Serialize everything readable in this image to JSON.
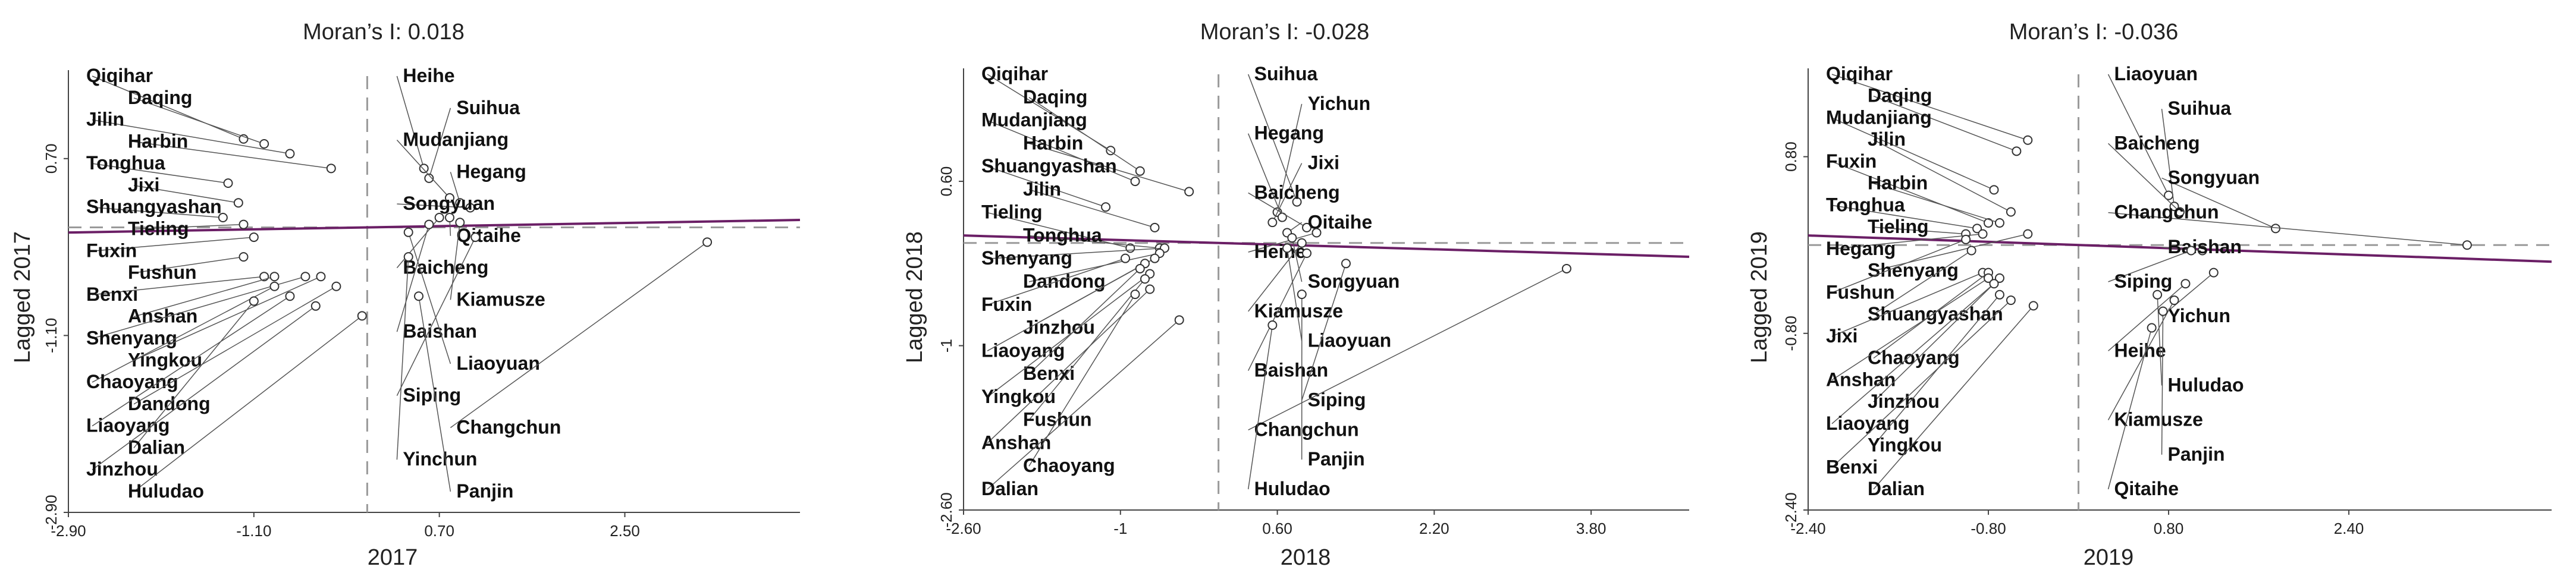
{
  "figure": {
    "panels": [
      {
        "title": "Moran’s I: 0.018",
        "xlabel": "2017",
        "ylabel": "Lagged 2017"
      },
      {
        "title": "Moran’s I: -0.028",
        "xlabel": "2018",
        "ylabel": "Lagged 2018"
      },
      {
        "title": "Moran’s I: -0.036",
        "xlabel": "2019",
        "ylabel": "Lagged 2019"
      }
    ]
  },
  "colors": {
    "regression_line": "#6b1f66",
    "reference_line": "#9a9a9a",
    "points": "#333333"
  },
  "chart_data": [
    {
      "type": "scatter",
      "title": "Moran’s I: 0.018",
      "xlabel": "2017",
      "ylabel": "Lagged 2017",
      "xlim": [
        -2.9,
        4.2
      ],
      "ylim": [
        -2.9,
        1.6
      ],
      "xticks": [
        -2.9,
        -1.1,
        0.7,
        2.5
      ],
      "xtick_labels": [
        "-2.90",
        "-1.10",
        "0.70",
        "2.50"
      ],
      "yticks": [
        -2.9,
        -1.1,
        0.7
      ],
      "ytick_labels": [
        "-2.90",
        "-1.10",
        "0.70"
      ],
      "reference_lines": {
        "vertical_x": 0,
        "horizontal_y": 0
      },
      "regression_slope": 0.018,
      "points": [
        {
          "name": "Daqing",
          "x": -1.0,
          "y": 0.85
        },
        {
          "name": "Qiqihar",
          "x": -1.2,
          "y": 0.9
        },
        {
          "name": "Jilin",
          "x": -0.75,
          "y": 0.75
        },
        {
          "name": "Harbin",
          "x": -0.35,
          "y": 0.6
        },
        {
          "name": "Tonghua",
          "x": -1.35,
          "y": 0.45
        },
        {
          "name": "Jixi",
          "x": -1.25,
          "y": 0.25
        },
        {
          "name": "Shuangyashan",
          "x": -1.4,
          "y": 0.1
        },
        {
          "name": "Tieling",
          "x": -1.2,
          "y": 0.03
        },
        {
          "name": "Fuxin",
          "x": -1.1,
          "y": -0.1
        },
        {
          "name": "Fushun",
          "x": -1.2,
          "y": -0.3
        },
        {
          "name": "Benxi",
          "x": -1.0,
          "y": -0.5
        },
        {
          "name": "Anshan",
          "x": -0.9,
          "y": -0.5
        },
        {
          "name": "Shenyang",
          "x": -0.6,
          "y": -0.5
        },
        {
          "name": "Yingkou",
          "x": -0.45,
          "y": -0.5
        },
        {
          "name": "Dalian",
          "x": -1.1,
          "y": -0.75
        },
        {
          "name": "Chaoyang",
          "x": -0.9,
          "y": -0.6
        },
        {
          "name": "Liaoyang",
          "x": -0.75,
          "y": -0.7
        },
        {
          "name": "Jinzhou",
          "x": -0.5,
          "y": -0.8
        },
        {
          "name": "Dandong",
          "x": -0.3,
          "y": -0.6
        },
        {
          "name": "Huludao",
          "x": -0.05,
          "y": -0.9
        },
        {
          "name": "Heihe",
          "x": 0.55,
          "y": 0.6
        },
        {
          "name": "Suihua",
          "x": 0.6,
          "y": 0.5
        },
        {
          "name": "Mudanjiang",
          "x": 0.8,
          "y": 0.3
        },
        {
          "name": "Hegang",
          "x": 0.9,
          "y": 0.25
        },
        {
          "name": "Songyuan",
          "x": 1.0,
          "y": 0.2
        },
        {
          "name": "Qitaihe",
          "x": 0.8,
          "y": 0.1
        },
        {
          "name": "Baicheng",
          "x": 0.7,
          "y": 0.1
        },
        {
          "name": "Kiamusze",
          "x": 0.9,
          "y": 0.05
        },
        {
          "name": "Baishan",
          "x": 0.6,
          "y": 0.03
        },
        {
          "name": "Siping",
          "x": 1.05,
          "y": -0.1
        },
        {
          "name": "Liaoyuan",
          "x": 0.4,
          "y": -0.05
        },
        {
          "name": "Panjin",
          "x": 0.5,
          "y": -0.7
        },
        {
          "name": "Yinchun",
          "x": 0.4,
          "y": -0.3
        },
        {
          "name": "Changchun",
          "x": 3.3,
          "y": -0.15
        }
      ]
    },
    {
      "type": "scatter",
      "title": "Moran’s I: -0.028",
      "xlabel": "2018",
      "ylabel": "Lagged 2018",
      "xlim": [
        -2.6,
        4.8
      ],
      "ylim": [
        -2.6,
        1.7
      ],
      "xticks": [
        -2.6,
        -1,
        0.6,
        2.2,
        3.8
      ],
      "xtick_labels": [
        "-2.60",
        "-1",
        "0.60",
        "2.20",
        "3.80"
      ],
      "yticks": [
        -2.6,
        -1,
        0.6
      ],
      "ytick_labels": [
        "-2.60",
        "-1",
        "0.60"
      ],
      "reference_lines": {
        "vertical_x": 0,
        "horizontal_y": 0
      },
      "regression_slope": -0.028,
      "points": [
        {
          "name": "Qiqihar",
          "x": -1.1,
          "y": 0.9
        },
        {
          "name": "Daqing",
          "x": -0.8,
          "y": 0.7
        },
        {
          "name": "Mudanjiang",
          "x": -0.85,
          "y": 0.6
        },
        {
          "name": "Harbin",
          "x": -0.3,
          "y": 0.5
        },
        {
          "name": "Shuangyashan",
          "x": -1.15,
          "y": 0.35
        },
        {
          "name": "Jilin",
          "x": -0.65,
          "y": 0.15
        },
        {
          "name": "Tieling",
          "x": -0.9,
          "y": -0.05
        },
        {
          "name": "Fuxin",
          "x": -0.95,
          "y": -0.15
        },
        {
          "name": "Benxi",
          "x": -0.8,
          "y": -0.25
        },
        {
          "name": "Fushun",
          "x": -0.75,
          "y": -0.35
        },
        {
          "name": "Anshan",
          "x": -0.7,
          "y": -0.45
        },
        {
          "name": "Dalian",
          "x": -0.4,
          "y": -0.75
        },
        {
          "name": "Liaoyang",
          "x": -0.75,
          "y": -0.2
        },
        {
          "name": "Yingkou",
          "x": -0.7,
          "y": -0.3
        },
        {
          "name": "Tonghua",
          "x": -0.6,
          "y": -0.05
        },
        {
          "name": "Chaoyang",
          "x": -0.85,
          "y": -0.5
        },
        {
          "name": "Jinzhou",
          "x": -0.65,
          "y": -0.15
        },
        {
          "name": "Dandong",
          "x": -0.6,
          "y": -0.1
        },
        {
          "name": "Shenyang",
          "x": -0.55,
          "y": -0.05
        },
        {
          "name": "Yichun",
          "x": 0.6,
          "y": 0.3
        },
        {
          "name": "Hegang",
          "x": 0.65,
          "y": 0.25
        },
        {
          "name": "Suihua",
          "x": 0.8,
          "y": 0.4
        },
        {
          "name": "Jixi",
          "x": 0.55,
          "y": 0.2
        },
        {
          "name": "Baicheng",
          "x": 0.9,
          "y": 0.15
        },
        {
          "name": "Qitaihe",
          "x": 0.7,
          "y": 0.1
        },
        {
          "name": "Heihe",
          "x": 1.0,
          "y": 0.1
        },
        {
          "name": "Songyuan",
          "x": 0.75,
          "y": 0.05
        },
        {
          "name": "Kiamusze",
          "x": 0.85,
          "y": 0.0
        },
        {
          "name": "Siping",
          "x": 1.3,
          "y": -0.2
        },
        {
          "name": "Panjin",
          "x": 0.85,
          "y": -0.5
        },
        {
          "name": "Huludao",
          "x": 0.55,
          "y": -0.8
        },
        {
          "name": "Liaoyuan",
          "x": 0.7,
          "y": -0.05
        },
        {
          "name": "Baishan",
          "x": 0.9,
          "y": -0.1
        },
        {
          "name": "Changchun",
          "x": 3.55,
          "y": -0.25
        }
      ]
    },
    {
      "type": "scatter",
      "title": "Moran’s I: -0.036",
      "xlabel": "2019",
      "ylabel": "Lagged 2019",
      "xlim": [
        -2.4,
        4.2
      ],
      "ylim": [
        -2.4,
        1.6
      ],
      "xticks": [
        -2.4,
        -0.8,
        0.8,
        2.4
      ],
      "xtick_labels": [
        "-2.40",
        "-0.80",
        "0.80",
        "2.40"
      ],
      "yticks": [
        -2.4,
        -0.8,
        0.8
      ],
      "ytick_labels": [
        "-2.40",
        "-0.80",
        "0.80"
      ],
      "reference_lines": {
        "vertical_x": 0,
        "horizontal_y": 0
      },
      "regression_slope": -0.036,
      "points": [
        {
          "name": "Mudanjiang",
          "x": -0.75,
          "y": 0.5
        },
        {
          "name": "Fuxin",
          "x": -0.8,
          "y": 0.2
        },
        {
          "name": "Qiqihar",
          "x": -0.45,
          "y": 0.95
        },
        {
          "name": "Daqing",
          "x": -0.55,
          "y": 0.85
        },
        {
          "name": "Tonghua",
          "x": -0.9,
          "y": 0.15
        },
        {
          "name": "Harbin",
          "x": -0.7,
          "y": 0.2
        },
        {
          "name": "Jilin",
          "x": -0.6,
          "y": 0.3
        },
        {
          "name": "Tieling",
          "x": -1.0,
          "y": 0.1
        },
        {
          "name": "Hegang",
          "x": -0.85,
          "y": 0.1
        },
        {
          "name": "Shenyang",
          "x": -0.45,
          "y": 0.1
        },
        {
          "name": "Fushun",
          "x": -1.0,
          "y": 0.05
        },
        {
          "name": "Shuangyashan",
          "x": -0.95,
          "y": -0.05
        },
        {
          "name": "Jixi",
          "x": -0.85,
          "y": -0.25
        },
        {
          "name": "Anshan",
          "x": -0.8,
          "y": -0.3
        },
        {
          "name": "Liaoyang",
          "x": -0.75,
          "y": -0.35
        },
        {
          "name": "Jinzhou",
          "x": -0.7,
          "y": -0.3
        },
        {
          "name": "Yingkou",
          "x": -0.7,
          "y": -0.45
        },
        {
          "name": "Chaoyang",
          "x": -0.8,
          "y": -0.25
        },
        {
          "name": "Dalian",
          "x": -0.4,
          "y": -0.55
        },
        {
          "name": "Benxi",
          "x": -0.6,
          "y": -0.5
        },
        {
          "name": "Liaoyuan",
          "x": 0.8,
          "y": 0.45
        },
        {
          "name": "Suihua",
          "x": 0.85,
          "y": 0.35
        },
        {
          "name": "Baicheng",
          "x": 0.9,
          "y": 0.3
        },
        {
          "name": "Songyuan",
          "x": 1.75,
          "y": 0.15
        },
        {
          "name": "Baishan",
          "x": 1.1,
          "y": -0.05
        },
        {
          "name": "Changchun",
          "x": 3.45,
          "y": 0.0
        },
        {
          "name": "Siping",
          "x": 1.0,
          "y": -0.05
        },
        {
          "name": "Yichun",
          "x": 1.2,
          "y": -0.25
        },
        {
          "name": "Heihe",
          "x": 0.95,
          "y": -0.35
        },
        {
          "name": "Kiamusze",
          "x": 0.85,
          "y": -0.5
        },
        {
          "name": "Panjin",
          "x": 0.75,
          "y": -0.6
        },
        {
          "name": "Huludao",
          "x": 0.7,
          "y": -0.45
        },
        {
          "name": "Qitaihe",
          "x": 0.65,
          "y": -0.75
        }
      ]
    }
  ]
}
